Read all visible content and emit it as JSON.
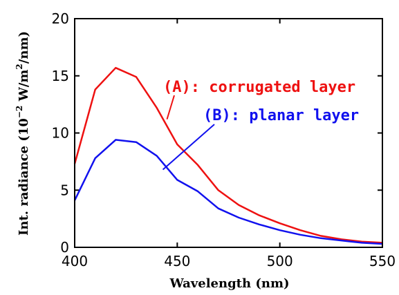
{
  "chart_data": {
    "type": "line",
    "xlabel": "Wavelength (nm)",
    "ylabel": {
      "prefix": "Int. radiance (10",
      "exp1": "−2",
      "mid": " W/m",
      "exp2": "2",
      "suffix": "/nm)"
    },
    "xlim": [
      400,
      550
    ],
    "ylim": [
      0,
      20
    ],
    "xticks": [
      400,
      450,
      500,
      550
    ],
    "yticks": [
      0,
      5,
      10,
      15,
      20
    ],
    "grid": false,
    "series": [
      {
        "name": "(A): corrugated layer",
        "color": "#ee1111",
        "x": [
          400,
          410,
          420,
          430,
          440,
          450,
          460,
          470,
          480,
          490,
          500,
          510,
          520,
          530,
          540,
          550
        ],
        "y": [
          7.3,
          13.8,
          15.7,
          14.9,
          12.2,
          9.0,
          7.2,
          5.0,
          3.7,
          2.8,
          2.1,
          1.5,
          1.0,
          0.7,
          0.5,
          0.4
        ]
      },
      {
        "name": "(B): planar layer",
        "color": "#1111ee",
        "x": [
          400,
          410,
          420,
          430,
          440,
          450,
          460,
          470,
          480,
          490,
          500,
          510,
          520,
          530,
          540,
          550
        ],
        "y": [
          4.1,
          7.8,
          9.4,
          9.2,
          8.0,
          5.9,
          4.9,
          3.4,
          2.6,
          2.0,
          1.5,
          1.1,
          0.8,
          0.6,
          0.4,
          0.3
        ]
      }
    ],
    "annotations": [
      {
        "series": 0,
        "text": "(A): corrugated layer",
        "point_to": [
          445,
          11.2
        ]
      },
      {
        "series": 1,
        "text": "(B): planar layer",
        "point_to": [
          443,
          6.8
        ]
      }
    ]
  }
}
